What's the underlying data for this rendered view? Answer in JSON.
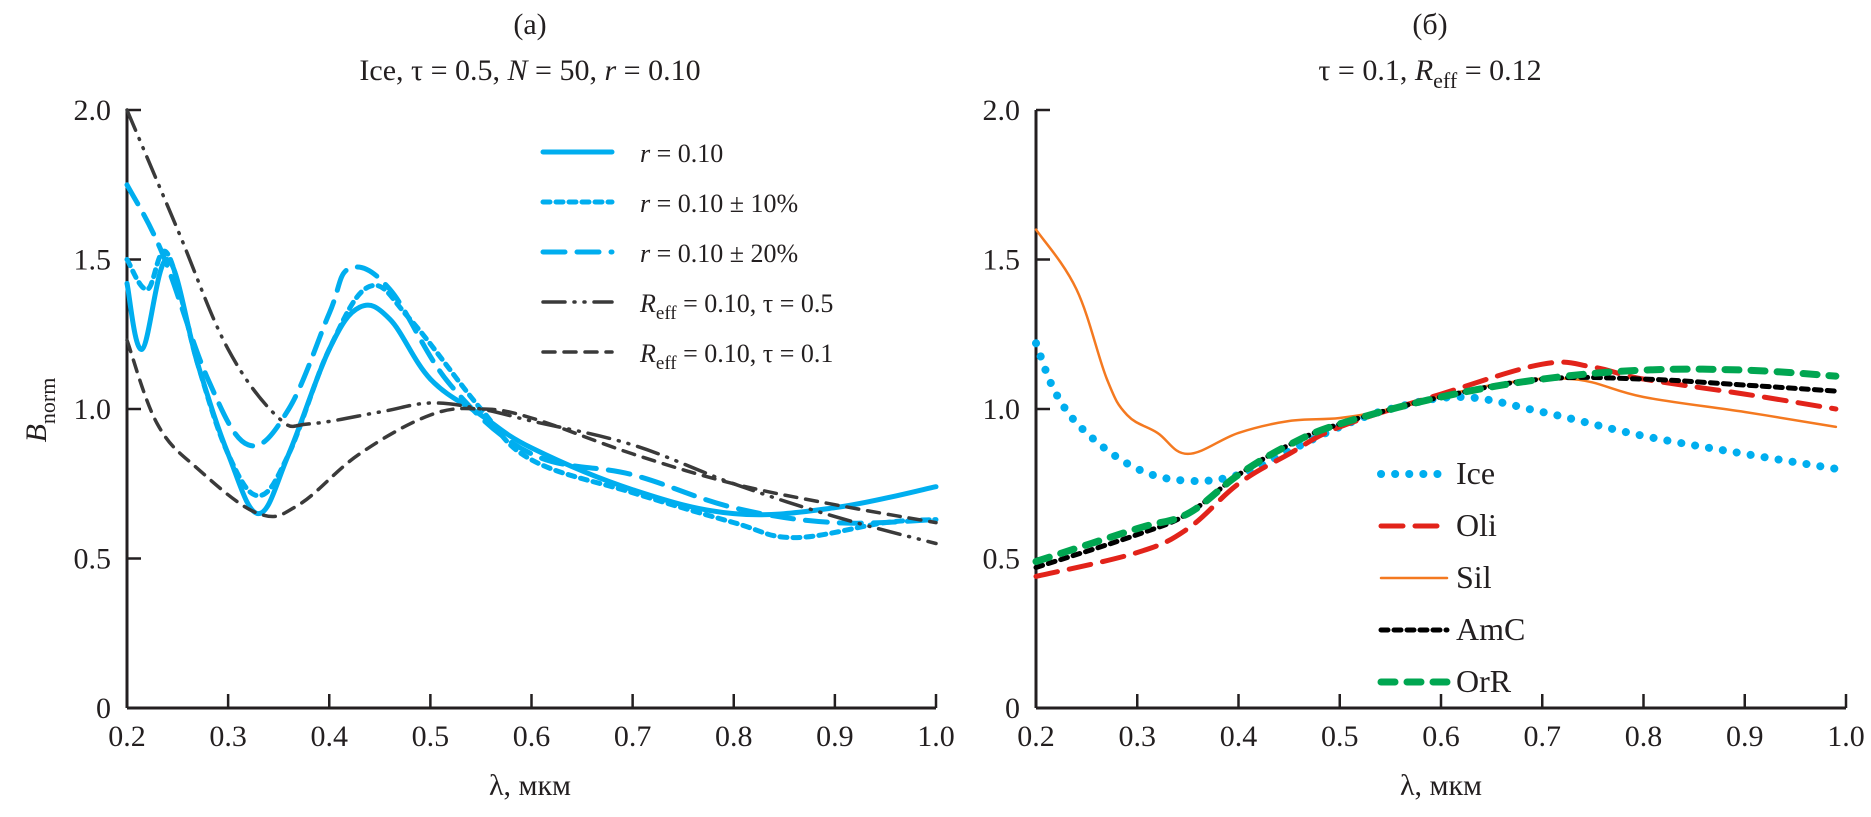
{
  "chart_data": [
    {
      "panel_label": "(a)",
      "type": "line",
      "title": "Ice, τ = 0.5, N = 50, r = 0.10",
      "title_parts": [
        {
          "t": "Ice, τ = 0.5, "
        },
        {
          "t": "N",
          "italic": true
        },
        {
          "t": " = 50, "
        },
        {
          "t": "r",
          "italic": true
        },
        {
          "t": " = 0.10"
        }
      ],
      "xlabel": "λ, мкм",
      "ylabel": "B",
      "ylabel_sub": "norm",
      "xlim": [
        0.2,
        1.0
      ],
      "ylim": [
        0,
        2.0
      ],
      "xticks": [
        "0.2",
        "0.3",
        "0.4",
        "0.5",
        "0.6",
        "0.7",
        "0.8",
        "0.9",
        "1.0"
      ],
      "xtick_values": [
        0.2,
        0.3,
        0.4,
        0.5,
        0.6,
        0.7,
        0.8,
        0.9,
        1.0
      ],
      "yticks": [
        "0",
        "0.5",
        "1.0",
        "1.5",
        "2.0"
      ],
      "ytick_values": [
        0,
        0.5,
        1.0,
        1.5,
        2.0
      ],
      "grid": false,
      "legend_position": "top-right",
      "series": [
        {
          "name": "r = 0.10",
          "label_main": "r",
          "label_rest": " = 0.10",
          "italic_main": true,
          "sub": "",
          "color": "#00aeef",
          "style": "solid",
          "x": [
            0.2,
            0.215,
            0.24,
            0.27,
            0.3,
            0.33,
            0.36,
            0.4,
            0.43,
            0.46,
            0.5,
            0.55,
            0.6,
            0.7,
            0.8,
            0.9,
            1.0
          ],
          "y": [
            1.42,
            1.2,
            1.5,
            1.15,
            0.85,
            0.65,
            0.85,
            1.2,
            1.34,
            1.3,
            1.1,
            0.98,
            0.87,
            0.73,
            0.65,
            0.67,
            0.74
          ]
        },
        {
          "name": "r = 0.10 ± 10%",
          "label_main": "r",
          "label_rest": " = 0.10 ± 10%",
          "italic_main": true,
          "sub": "",
          "color": "#00aeef",
          "style": "short-dash",
          "x": [
            0.2,
            0.22,
            0.24,
            0.27,
            0.3,
            0.33,
            0.36,
            0.4,
            0.44,
            0.48,
            0.55,
            0.6,
            0.7,
            0.8,
            0.86,
            0.95,
            1.0
          ],
          "y": [
            1.5,
            1.4,
            1.52,
            1.15,
            0.85,
            0.71,
            0.85,
            1.2,
            1.41,
            1.3,
            1.0,
            0.83,
            0.72,
            0.62,
            0.57,
            0.62,
            0.63
          ]
        },
        {
          "name": "r = 0.10 ± 20%",
          "label_main": "r",
          "label_rest": " = 0.10 ± 20%",
          "italic_main": true,
          "sub": "",
          "color": "#00aeef",
          "style": "long-dash",
          "x": [
            0.2,
            0.235,
            0.28,
            0.32,
            0.36,
            0.4,
            0.42,
            0.46,
            0.52,
            0.6,
            0.7,
            0.8,
            0.9,
            1.0
          ],
          "y": [
            1.75,
            1.52,
            1.1,
            0.88,
            1.0,
            1.32,
            1.47,
            1.4,
            1.08,
            0.85,
            0.78,
            0.67,
            0.62,
            0.63
          ]
        },
        {
          "name": "Reff = 0.10, τ = 0.5",
          "label_main": "R",
          "label_rest": " = 0.10, τ = 0.5",
          "italic_main": true,
          "sub": "eff",
          "color": "#3a3a3a",
          "style": "dash-dot-dot",
          "x": [
            0.2,
            0.25,
            0.3,
            0.35,
            0.38,
            0.45,
            0.5,
            0.55,
            0.6,
            0.7,
            0.8,
            0.9,
            1.0
          ],
          "y": [
            2.0,
            1.6,
            1.2,
            0.97,
            0.95,
            0.99,
            1.02,
            1.0,
            0.96,
            0.88,
            0.75,
            0.64,
            0.55
          ]
        },
        {
          "name": "Reff = 0.10, τ = 0.1",
          "label_main": "R",
          "label_rest": " = 0.10, τ = 0.1",
          "italic_main": true,
          "sub": "eff",
          "color": "#3a3a3a",
          "style": "dash",
          "x": [
            0.2,
            0.23,
            0.27,
            0.33,
            0.37,
            0.43,
            0.5,
            0.55,
            0.6,
            0.7,
            0.8,
            0.9,
            1.0
          ],
          "y": [
            1.23,
            0.95,
            0.8,
            0.65,
            0.68,
            0.85,
            0.98,
            1.0,
            0.97,
            0.85,
            0.75,
            0.68,
            0.62
          ]
        }
      ]
    },
    {
      "panel_label": "(б)",
      "type": "line",
      "title": "τ = 0.1, Reff = 0.12",
      "title_parts": [
        {
          "t": "τ = 0.1, "
        },
        {
          "t": "R",
          "italic": true
        },
        {
          "t": "eff",
          "sub": true
        },
        {
          "t": " = 0.12"
        }
      ],
      "xlabel": "λ, мкм",
      "ylabel": "",
      "xlim": [
        0.2,
        1.0
      ],
      "ylim": [
        0,
        2.0
      ],
      "xticks": [
        "0.2",
        "0.3",
        "0.4",
        "0.5",
        "0.6",
        "0.7",
        "0.8",
        "0.9",
        "1.0"
      ],
      "xtick_values": [
        0.2,
        0.3,
        0.4,
        0.5,
        0.6,
        0.7,
        0.8,
        0.9,
        1.0
      ],
      "yticks": [
        "0",
        "0.5",
        "1.0",
        "1.5",
        "2.0"
      ],
      "ytick_values": [
        0,
        0.5,
        1.0,
        1.5,
        2.0
      ],
      "grid": false,
      "legend_position": "bottom-right",
      "series": [
        {
          "name": "Ice",
          "color": "#00aeef",
          "style": "dot",
          "x": [
            0.2,
            0.22,
            0.25,
            0.3,
            0.35,
            0.4,
            0.45,
            0.5,
            0.55,
            0.62,
            0.7,
            0.8,
            0.9,
            0.99
          ],
          "y": [
            1.22,
            1.05,
            0.92,
            0.8,
            0.76,
            0.78,
            0.86,
            0.94,
            1.0,
            1.04,
            0.99,
            0.91,
            0.85,
            0.8
          ]
        },
        {
          "name": "Oli",
          "color": "#e2231a",
          "style": "long-dash",
          "x": [
            0.2,
            0.3,
            0.35,
            0.4,
            0.45,
            0.5,
            0.6,
            0.7,
            0.75,
            0.8,
            0.9,
            0.99
          ],
          "y": [
            0.44,
            0.52,
            0.6,
            0.75,
            0.85,
            0.94,
            1.05,
            1.15,
            1.14,
            1.1,
            1.05,
            1.0
          ]
        },
        {
          "name": "Sil",
          "color": "#f47920",
          "style": "solid-thin",
          "x": [
            0.2,
            0.24,
            0.27,
            0.29,
            0.32,
            0.35,
            0.4,
            0.45,
            0.5,
            0.55,
            0.65,
            0.73,
            0.8,
            0.9,
            0.99
          ],
          "y": [
            1.6,
            1.4,
            1.1,
            0.98,
            0.92,
            0.85,
            0.92,
            0.96,
            0.97,
            1.0,
            1.08,
            1.1,
            1.04,
            0.99,
            0.94
          ]
        },
        {
          "name": "AmC",
          "color": "#000000",
          "style": "short-dash",
          "x": [
            0.2,
            0.3,
            0.35,
            0.4,
            0.45,
            0.5,
            0.6,
            0.7,
            0.8,
            0.9,
            0.99
          ],
          "y": [
            0.47,
            0.58,
            0.65,
            0.78,
            0.88,
            0.95,
            1.04,
            1.1,
            1.1,
            1.08,
            1.06
          ]
        },
        {
          "name": "OrR",
          "color": "#00a651",
          "style": "thick-dash",
          "x": [
            0.2,
            0.3,
            0.35,
            0.4,
            0.45,
            0.5,
            0.6,
            0.7,
            0.8,
            0.9,
            0.99
          ],
          "y": [
            0.49,
            0.6,
            0.65,
            0.78,
            0.88,
            0.95,
            1.04,
            1.1,
            1.13,
            1.13,
            1.11
          ]
        }
      ]
    }
  ]
}
